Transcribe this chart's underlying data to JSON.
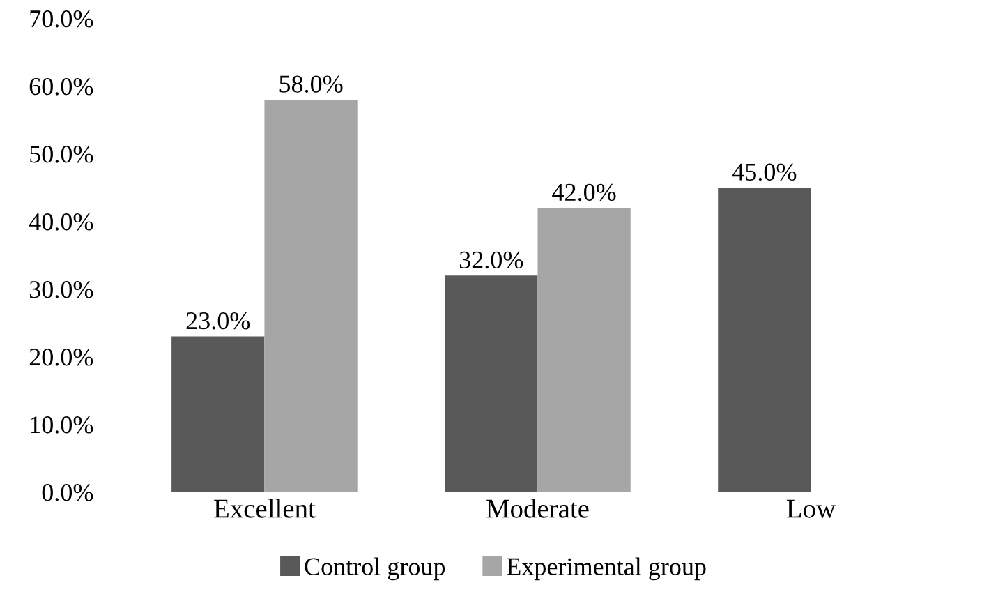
{
  "chart_data": {
    "type": "bar",
    "categories": [
      "Excellent",
      "Moderate",
      "Low"
    ],
    "series": [
      {
        "name": "Control group",
        "color": "#595959",
        "values": [
          23.0,
          32.0,
          45.0
        ],
        "value_labels": [
          "23.0%",
          "32.0%",
          "45.0%"
        ]
      },
      {
        "name": "Experimental group",
        "color": "#a6a6a6",
        "values": [
          58.0,
          42.0,
          null
        ],
        "value_labels": [
          "58.0%",
          "42.0%",
          null
        ]
      }
    ],
    "ylim": [
      0,
      70
    ],
    "yticks": [
      {
        "value": 0,
        "label": "0.0%"
      },
      {
        "value": 10,
        "label": "10.0%"
      },
      {
        "value": 20,
        "label": "20.0%"
      },
      {
        "value": 30,
        "label": "30.0%"
      },
      {
        "value": 40,
        "label": "40.0%"
      },
      {
        "value": 50,
        "label": "50.0%"
      },
      {
        "value": 60,
        "label": "60.0%"
      },
      {
        "value": 70,
        "label": "70.0%"
      }
    ],
    "grid": false,
    "legend": "bottom"
  }
}
